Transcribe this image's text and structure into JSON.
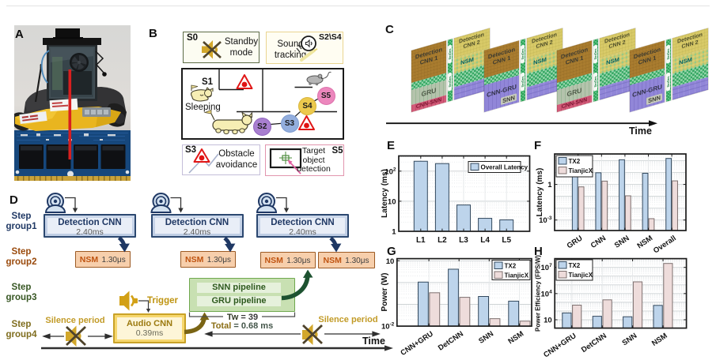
{
  "panel_letters": {
    "a": "A",
    "b": "B",
    "c": "C",
    "d": "D",
    "e": "E",
    "f": "F",
    "g": "G",
    "h": "H"
  },
  "panel_b": {
    "s0": {
      "tag": "S0",
      "line1": "Standby",
      "line2": "mode"
    },
    "sound": {
      "tag": "S2\\S4",
      "line1": "Sound",
      "line2": "tracking"
    },
    "map": {
      "room": "S1",
      "sleeping": "Sleeping",
      "nodes": [
        {
          "id": "S2",
          "color": "#a87fd0"
        },
        {
          "id": "S3",
          "color": "#93aedd"
        },
        {
          "id": "S4",
          "color": "#ecc94d"
        },
        {
          "id": "S5",
          "color": "#ec87bd"
        }
      ]
    },
    "obstacle": {
      "tag": "S3",
      "line1": "Obstacle",
      "line2": "avoidance"
    },
    "target": {
      "tag": "S5",
      "line1": "Target",
      "line2": "object",
      "line3": "detection"
    }
  },
  "panel_c": {
    "serdes": "SerDes",
    "time_label": "Time",
    "groups": [
      {
        "type": "gru",
        "front_top1": "Detection",
        "front_top2": "CNN 1",
        "mid": "GRU",
        "bottom": "CNN-SNN",
        "back_top1": "Detection",
        "back_top2": "CNN 2",
        "back_nsm": "NSM"
      },
      {
        "type": "snn",
        "front_top1": "Detection",
        "front_top2": "CNN 1",
        "mid": "CNN-GRU",
        "bottom": "SNN",
        "back_top1": "Detection",
        "back_top2": "CNN 2",
        "back_nsm": "NSM"
      },
      {
        "type": "gru",
        "front_top1": "Detection",
        "front_top2": "CNN 1",
        "mid": "GRU",
        "bottom": "CNN-SNN",
        "back_top1": "Detection",
        "back_top2": "CNN 2",
        "back_nsm": "NSM"
      },
      {
        "type": "snn",
        "front_top1": "Detection",
        "front_top2": "CNN 1",
        "mid": "CNN-GRU",
        "bottom": "SNN",
        "back_top1": "Detection",
        "back_top2": "CNN 2",
        "back_nsm": "NSM"
      }
    ]
  },
  "panel_d": {
    "groups": [
      {
        "l1": "Step",
        "l2": "group1",
        "color": "#1f3864"
      },
      {
        "l1": "Step",
        "l2": "group2",
        "color": "#9a4a0c"
      },
      {
        "l1": "Step",
        "l2": "group3",
        "color": "#375623"
      },
      {
        "l1": "Step",
        "l2": "group4",
        "color": "#7f6d1e"
      }
    ],
    "detection": {
      "title": "Detection CNN",
      "time": "2.40ms"
    },
    "nsm": {
      "title": "NSM",
      "time": "1.30μs"
    },
    "snn_row": "SNN pipeline",
    "gru_row": "GRU pipeline",
    "audio": {
      "title": "Audio CNN",
      "time": "0.39ms"
    },
    "trigger": "Trigger",
    "silence_left": "Silence period",
    "silence_right": "Silence period",
    "tw_bold": "Tw",
    "tw_rest": " = 39",
    "total_bold": "Total",
    "total_rest": " = 0.68 ms",
    "time_label": "Time"
  },
  "chart_data": [
    {
      "id": "E",
      "type": "bar",
      "title": "",
      "xlabel": "",
      "ylabel": "Latency (ms)",
      "categories": [
        "L1",
        "L2",
        "L3",
        "L4",
        "L5"
      ],
      "series": [
        {
          "name": "Overall Latency",
          "color": "#bdd4eb",
          "edge": "#33495e",
          "values": [
            213,
            178,
            7.5,
            2.7,
            2.4
          ]
        }
      ],
      "ylim": [
        1,
        320
      ],
      "yticks": [
        1,
        10,
        100
      ],
      "grid": true,
      "legend_position": "top-right"
    },
    {
      "id": "F",
      "type": "bar",
      "title": "",
      "xlabel": "",
      "ylabel": "Latency (ms)",
      "categories": [
        "GRU",
        "CNN",
        "SNN",
        "NSM",
        "Overall"
      ],
      "series": [
        {
          "name": "TX2",
          "color": "#bdd4eb",
          "edge": "#33495e",
          "values": [
            5.2,
            9.6,
            120,
            8.7,
            155
          ]
        },
        {
          "name": "TianjicX",
          "color": "#eedcdb",
          "edge": "#7c6f6e",
          "values": [
            0.62,
            1.9,
            0.11,
            0.0013,
            2.0
          ]
        }
      ],
      "ylim": [
        0.00013,
        370
      ],
      "yticks": [
        0.001,
        1
      ],
      "grid": true,
      "legend_position": "top-left"
    },
    {
      "id": "G",
      "type": "bar",
      "title": "",
      "xlabel": "",
      "ylabel": "Power (W)",
      "categories": [
        "CNN+GRU",
        "DetCNN",
        "SNN",
        "NSM"
      ],
      "series": [
        {
          "name": "TX2",
          "color": "#bdd4eb",
          "edge": "#33495e",
          "values": [
            1.05,
            4.1,
            0.23,
            0.14
          ]
        },
        {
          "name": "TianjicX",
          "color": "#eedcdb",
          "edge": "#7c6f6e",
          "values": [
            0.34,
            0.21,
            0.022,
            0.017
          ]
        }
      ],
      "ylim": [
        0.01,
        12.5
      ],
      "yticks": [
        0.01,
        10
      ],
      "grid": true,
      "legend_position": "top-right"
    },
    {
      "id": "H",
      "type": "bar",
      "title": "",
      "xlabel": "",
      "ylabel": "Power Efficiency (FPS/W)",
      "categories": [
        "CNN+GRU",
        "DetCNN",
        "SNN",
        "NSM"
      ],
      "series": [
        {
          "name": "TX2",
          "color": "#bdd4eb",
          "edge": "#33495e",
          "values": [
            60,
            25,
            22,
            440
          ]
        },
        {
          "name": "TianjicX",
          "color": "#eedcdb",
          "edge": "#7c6f6e",
          "values": [
            470,
            1900,
            220000,
            28000000
          ]
        }
      ],
      "ylim": [
        1.1,
        100000000
      ],
      "yticks": [
        10,
        10000,
        10000000
      ],
      "grid": true,
      "legend_position": "top-left"
    }
  ]
}
